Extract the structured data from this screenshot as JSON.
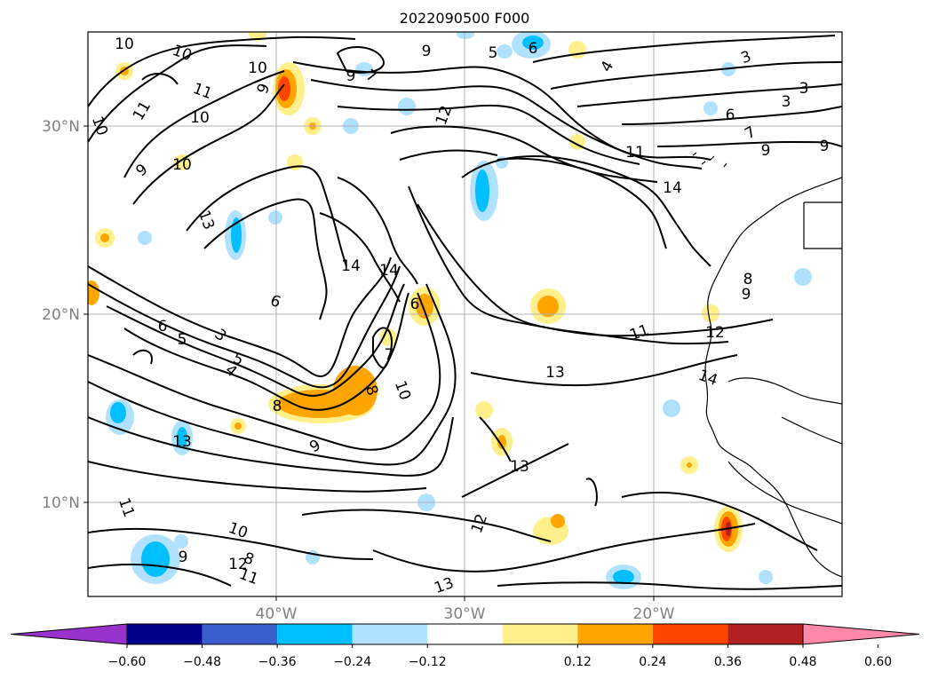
{
  "title": "2022090500 F000",
  "map": {
    "lat_ticks": [
      "30°N",
      "20°N",
      "10°N"
    ],
    "lon_ticks": [
      "40°W",
      "30°W",
      "20°W"
    ],
    "grid": true,
    "contour_labels": [
      "10",
      "10",
      "10",
      "11",
      "11",
      "10",
      "9",
      "10",
      "10",
      "9",
      "13",
      "12",
      "9",
      "9",
      "7",
      "6",
      "5",
      "4",
      "3",
      "3",
      "3",
      "6",
      "7",
      "9",
      "9",
      "11",
      "14",
      "14",
      "14",
      "6",
      "6",
      "6",
      "5",
      "3",
      "5",
      "4",
      "7",
      "8",
      "10",
      "8",
      "9",
      "13",
      "13",
      "13",
      "12",
      "11",
      "10",
      "9",
      "8",
      "12",
      "11",
      "13",
      "11",
      "12",
      "14",
      "8",
      "9"
    ]
  },
  "colorbar": {
    "ticks": [
      "−0.60",
      "−0.48",
      "−0.36",
      "−0.24",
      "−0.12",
      "0.12",
      "0.24",
      "0.36",
      "0.48",
      "0.60"
    ],
    "colors": [
      "#9932cc",
      "#00008b",
      "#3a5fcd",
      "#00bfff",
      "#b0e2ff",
      "#ffffff",
      "#fff08c",
      "#ffa500",
      "#ff4500",
      "#b22222",
      "#ff88aa"
    ],
    "extend": "both"
  },
  "colors": {
    "contour": "#000000",
    "grid": "#b0b0b0",
    "tick_text": "#808080"
  }
}
